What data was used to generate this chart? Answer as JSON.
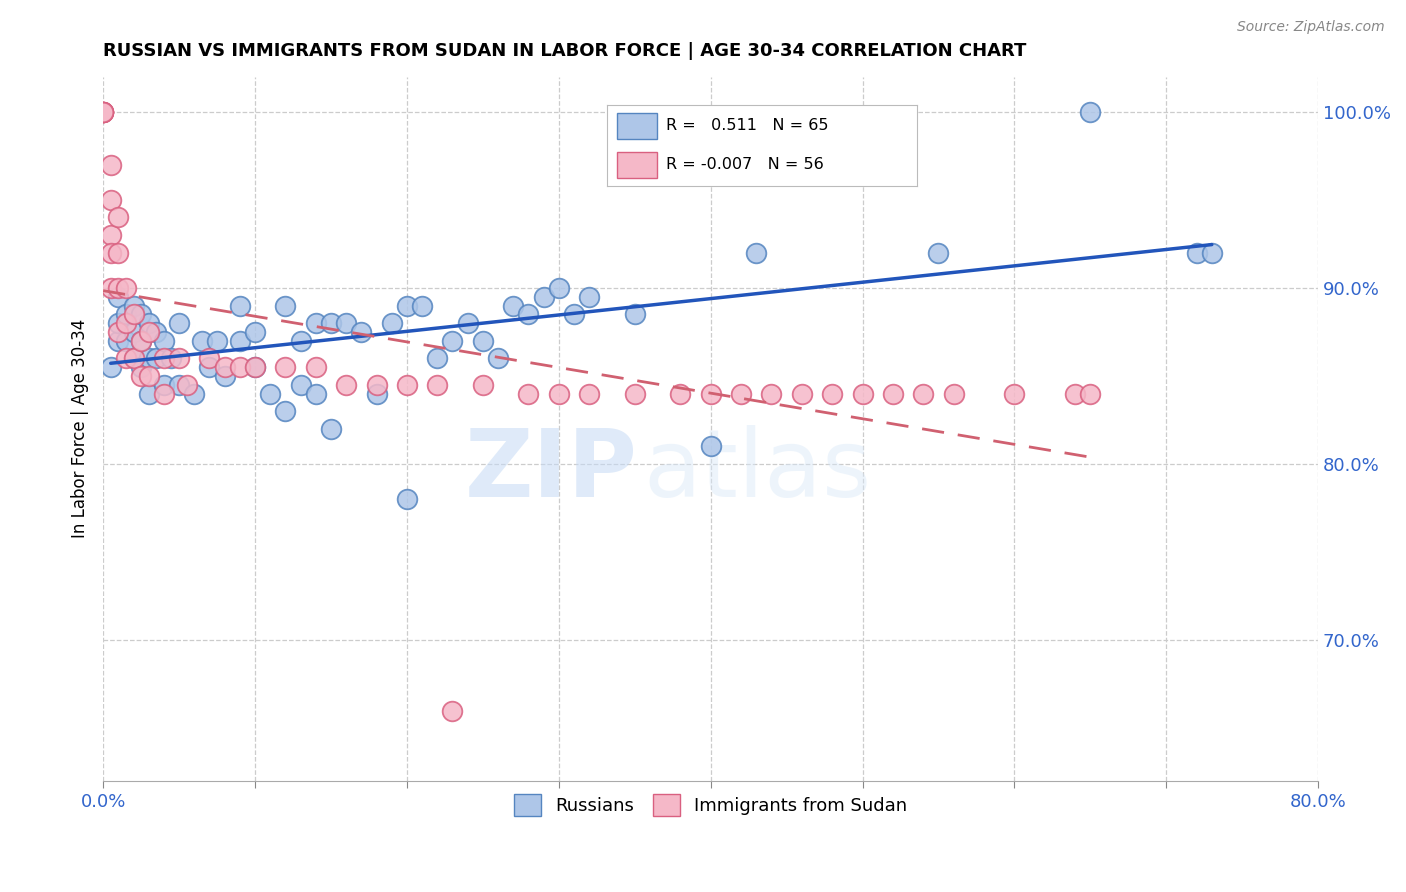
{
  "title": "RUSSIAN VS IMMIGRANTS FROM SUDAN IN LABOR FORCE | AGE 30-34 CORRELATION CHART",
  "source": "Source: ZipAtlas.com",
  "ylabel": "In Labor Force | Age 30-34",
  "xlim": [
    0.0,
    0.8
  ],
  "ylim": [
    0.62,
    1.02
  ],
  "xticks": [
    0.0,
    0.1,
    0.2,
    0.3,
    0.4,
    0.5,
    0.6,
    0.7,
    0.8
  ],
  "xticklabels": [
    "0.0%",
    "",
    "",
    "",
    "",
    "",
    "",
    "",
    "80.0%"
  ],
  "yticks": [
    0.7,
    0.8,
    0.9,
    1.0
  ],
  "yticklabels": [
    "70.0%",
    "80.0%",
    "90.0%",
    "100.0%"
  ],
  "russian_color": "#aec6e8",
  "sudan_color": "#f5b8c8",
  "russian_edge": "#5585c0",
  "sudan_edge": "#d96080",
  "trend_russian_color": "#2255bb",
  "trend_sudan_color": "#d06070",
  "R_russian": 0.511,
  "N_russian": 65,
  "R_sudan": -0.007,
  "N_sudan": 56,
  "legend_russian": "Russians",
  "legend_sudan": "Immigrants from Sudan",
  "watermark_zip": "ZIP",
  "watermark_atlas": "atlas",
  "russian_x": [
    0.005,
    0.01,
    0.01,
    0.01,
    0.015,
    0.015,
    0.02,
    0.02,
    0.02,
    0.025,
    0.025,
    0.025,
    0.03,
    0.03,
    0.03,
    0.035,
    0.035,
    0.04,
    0.04,
    0.045,
    0.05,
    0.05,
    0.06,
    0.065,
    0.07,
    0.075,
    0.08,
    0.09,
    0.09,
    0.1,
    0.1,
    0.11,
    0.12,
    0.12,
    0.13,
    0.13,
    0.14,
    0.14,
    0.15,
    0.15,
    0.16,
    0.17,
    0.18,
    0.19,
    0.2,
    0.2,
    0.21,
    0.22,
    0.23,
    0.24,
    0.25,
    0.26,
    0.27,
    0.28,
    0.29,
    0.3,
    0.31,
    0.32,
    0.35,
    0.4,
    0.43,
    0.55,
    0.65,
    0.72,
    0.73
  ],
  "russian_y": [
    0.855,
    0.87,
    0.88,
    0.895,
    0.87,
    0.885,
    0.86,
    0.875,
    0.89,
    0.855,
    0.87,
    0.885,
    0.84,
    0.86,
    0.88,
    0.86,
    0.875,
    0.845,
    0.87,
    0.86,
    0.845,
    0.88,
    0.84,
    0.87,
    0.855,
    0.87,
    0.85,
    0.87,
    0.89,
    0.855,
    0.875,
    0.84,
    0.83,
    0.89,
    0.845,
    0.87,
    0.84,
    0.88,
    0.82,
    0.88,
    0.88,
    0.875,
    0.84,
    0.88,
    0.78,
    0.89,
    0.89,
    0.86,
    0.87,
    0.88,
    0.87,
    0.86,
    0.89,
    0.885,
    0.895,
    0.9,
    0.885,
    0.895,
    0.885,
    0.81,
    0.92,
    0.92,
    1.0,
    0.92,
    0.92
  ],
  "sudan_x": [
    0.0,
    0.0,
    0.0,
    0.0,
    0.0,
    0.005,
    0.005,
    0.005,
    0.005,
    0.005,
    0.01,
    0.01,
    0.01,
    0.01,
    0.015,
    0.015,
    0.015,
    0.02,
    0.02,
    0.025,
    0.025,
    0.03,
    0.03,
    0.04,
    0.04,
    0.05,
    0.055,
    0.07,
    0.08,
    0.09,
    0.1,
    0.12,
    0.14,
    0.16,
    0.18,
    0.2,
    0.22,
    0.23,
    0.25,
    0.28,
    0.3,
    0.32,
    0.35,
    0.38,
    0.4,
    0.42,
    0.44,
    0.46,
    0.48,
    0.5,
    0.52,
    0.54,
    0.56,
    0.6,
    0.64,
    0.65
  ],
  "sudan_y": [
    1.0,
    1.0,
    1.0,
    1.0,
    1.0,
    0.97,
    0.95,
    0.93,
    0.92,
    0.9,
    0.94,
    0.92,
    0.9,
    0.875,
    0.9,
    0.88,
    0.86,
    0.885,
    0.86,
    0.87,
    0.85,
    0.875,
    0.85,
    0.86,
    0.84,
    0.86,
    0.845,
    0.86,
    0.855,
    0.855,
    0.855,
    0.855,
    0.855,
    0.845,
    0.845,
    0.845,
    0.845,
    0.66,
    0.845,
    0.84,
    0.84,
    0.84,
    0.84,
    0.84,
    0.84,
    0.84,
    0.84,
    0.84,
    0.84,
    0.84,
    0.84,
    0.84,
    0.84,
    0.84,
    0.84,
    0.84
  ]
}
